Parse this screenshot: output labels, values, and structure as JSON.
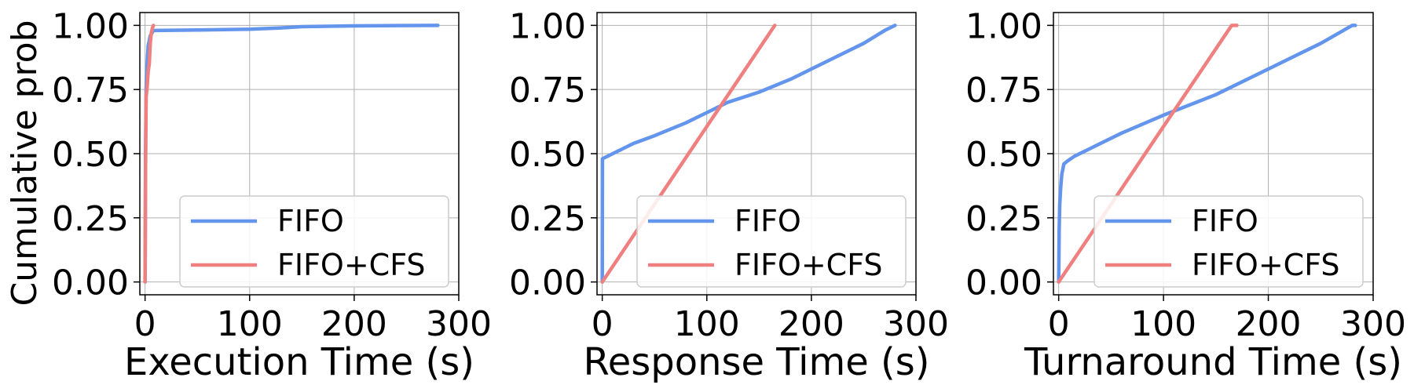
{
  "chart_data": [
    {
      "type": "line",
      "title": "",
      "xlabel": "Execution Time (s)",
      "ylabel": "Cumulative prob",
      "xlim": [
        -5,
        300
      ],
      "ylim": [
        -0.05,
        1.05
      ],
      "xticks": [
        "0",
        "100",
        "200",
        "300"
      ],
      "yticks": [
        "0.00",
        "0.25",
        "0.50",
        "0.75",
        "1.00"
      ],
      "grid": true,
      "legend": "lower-right",
      "series": [
        {
          "name": "FIFO",
          "color": "#6495ED",
          "x": [
            0,
            0.5,
            1,
            2,
            3,
            5,
            8,
            10,
            50,
            100,
            130,
            150,
            200,
            280
          ],
          "y": [
            0,
            0.5,
            0.75,
            0.85,
            0.92,
            0.96,
            0.98,
            0.98,
            0.982,
            0.985,
            0.99,
            0.995,
            0.998,
            1.0
          ]
        },
        {
          "name": "FIFO+CFS",
          "color": "#F08080",
          "x": [
            0,
            0.5,
            1,
            2,
            3,
            4,
            5,
            6,
            7,
            8
          ],
          "y": [
            0,
            0.45,
            0.72,
            0.76,
            0.82,
            0.85,
            0.93,
            0.97,
            0.99,
            1.0
          ]
        }
      ]
    },
    {
      "type": "line",
      "title": "",
      "xlabel": "Response Time (s)",
      "ylabel": "",
      "xlim": [
        -5,
        300
      ],
      "ylim": [
        -0.05,
        1.05
      ],
      "xticks": [
        "0",
        "100",
        "200",
        "300"
      ],
      "yticks": [
        "0.00",
        "0.25",
        "0.50",
        "0.75",
        "1.00"
      ],
      "grid": true,
      "legend": "lower-right",
      "series": [
        {
          "name": "FIFO",
          "color": "#6495ED",
          "x": [
            0,
            0.2,
            10,
            30,
            50,
            80,
            100,
            120,
            150,
            180,
            200,
            230,
            250,
            270,
            280
          ],
          "y": [
            0,
            0.48,
            0.5,
            0.54,
            0.57,
            0.62,
            0.66,
            0.7,
            0.74,
            0.79,
            0.83,
            0.89,
            0.93,
            0.98,
            1.0
          ]
        },
        {
          "name": "FIFO+CFS",
          "color": "#F08080",
          "x": [
            0,
            165
          ],
          "y": [
            0,
            1.0
          ]
        }
      ]
    },
    {
      "type": "line",
      "title": "",
      "xlabel": "Turnaround Time (s)",
      "ylabel": "",
      "xlim": [
        -5,
        300
      ],
      "ylim": [
        -0.05,
        1.05
      ],
      "xticks": [
        "0",
        "100",
        "200",
        "300"
      ],
      "yticks": [
        "0.00",
        "0.25",
        "0.50",
        "0.75",
        "1.00"
      ],
      "grid": true,
      "legend": "lower-right",
      "series": [
        {
          "name": "FIFO",
          "color": "#6495ED",
          "x": [
            0,
            0.5,
            1,
            2,
            3,
            5,
            8,
            15,
            30,
            60,
            100,
            150,
            200,
            250,
            280,
            283
          ],
          "y": [
            0,
            0.2,
            0.3,
            0.37,
            0.42,
            0.46,
            0.47,
            0.49,
            0.52,
            0.58,
            0.65,
            0.73,
            0.83,
            0.93,
            1.0,
            1.0
          ]
        },
        {
          "name": "FIFO+CFS",
          "color": "#F08080",
          "x": [
            0,
            165,
            170
          ],
          "y": [
            0,
            1.0,
            1.0
          ]
        }
      ]
    }
  ]
}
